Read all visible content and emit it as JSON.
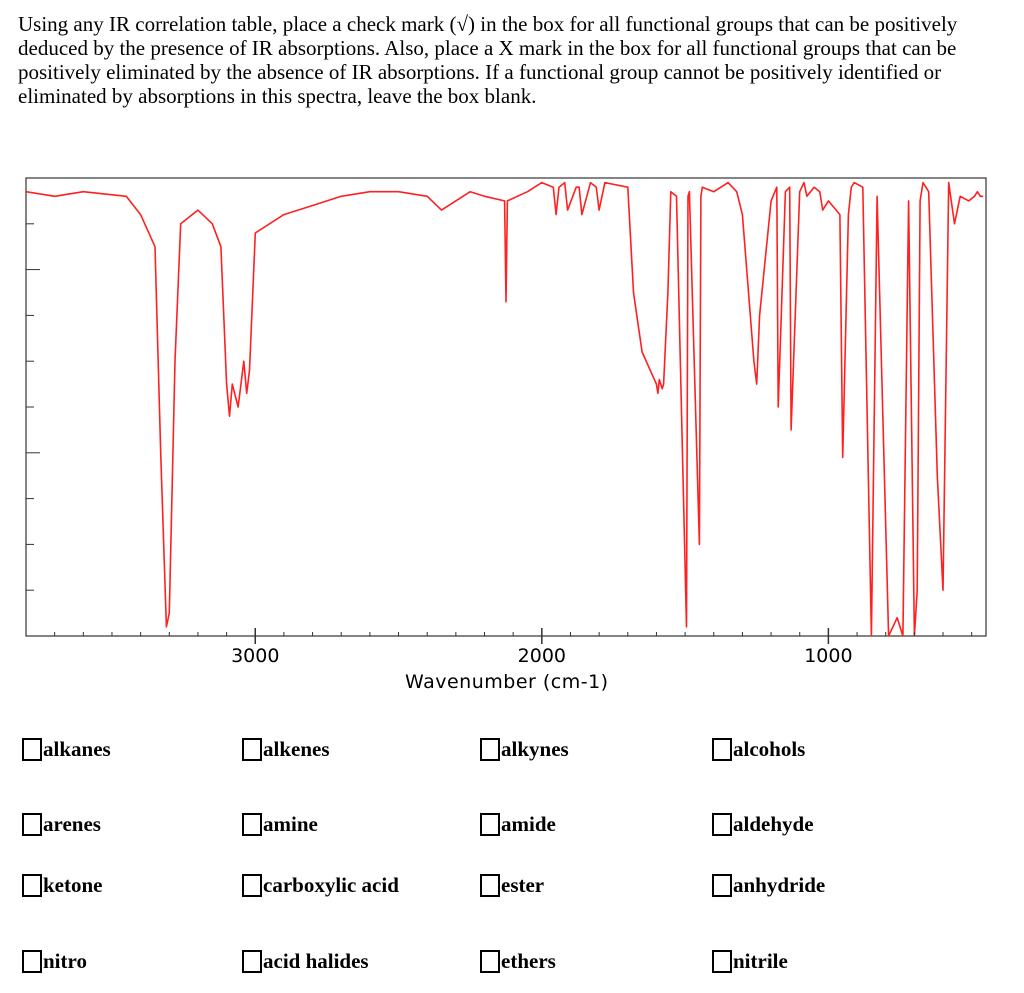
{
  "instructions": "Using any IR correlation table, place a check mark (√) in the box for all functional groups that can be positively deduced by the presence of IR absorptions.  Also, place a X mark in the box for all functional groups that can be positively eliminated by the absence of IR absorptions.  If a functional group cannot be positively identified or eliminated by absorptions in this spectra, leave the box blank.",
  "chart_data": {
    "type": "line",
    "xlabel": "Wavenumber (cm-1)",
    "x_ticks": [
      "3000",
      "2000",
      "1000"
    ],
    "x_tick_values": [
      3000,
      2000,
      1000
    ],
    "xlim": [
      3800,
      450
    ],
    "ylim": [
      0,
      1
    ],
    "y_ticks_labeled": false,
    "line_color": "#ff2020",
    "series": [
      {
        "name": "",
        "x": [
          3800,
          3700,
          3600,
          3450,
          3400,
          3350,
          3330,
          3310,
          3300,
          3280,
          3260,
          3200,
          3150,
          3120,
          3100,
          3090,
          3080,
          3060,
          3040,
          3030,
          3020,
          3000,
          2900,
          2800,
          2700,
          2600,
          2500,
          2400,
          2350,
          2250,
          2200,
          2130,
          2125,
          2120,
          2050,
          2000,
          1960,
          1950,
          1940,
          1920,
          1910,
          1880,
          1870,
          1860,
          1830,
          1810,
          1800,
          1780,
          1700,
          1680,
          1650,
          1600,
          1595,
          1590,
          1580,
          1575,
          1560,
          1550,
          1530,
          1495,
          1490,
          1485,
          1450,
          1445,
          1440,
          1400,
          1350,
          1320,
          1300,
          1260,
          1250,
          1240,
          1200,
          1180,
          1175,
          1150,
          1135,
          1130,
          1100,
          1085,
          1075,
          1050,
          1030,
          1020,
          1000,
          960,
          950,
          930,
          920,
          910,
          880,
          850,
          830,
          790,
          760,
          740,
          720,
          700,
          690,
          680,
          670,
          650,
          620,
          600,
          580,
          560,
          540,
          510,
          490,
          480,
          470,
          460
        ],
        "y": [
          0.97,
          0.96,
          0.97,
          0.96,
          0.92,
          0.85,
          0.4,
          0.02,
          0.05,
          0.6,
          0.9,
          0.93,
          0.9,
          0.85,
          0.55,
          0.48,
          0.55,
          0.5,
          0.6,
          0.53,
          0.58,
          0.88,
          0.92,
          0.94,
          0.96,
          0.97,
          0.97,
          0.96,
          0.93,
          0.97,
          0.96,
          0.95,
          0.73,
          0.95,
          0.97,
          0.99,
          0.98,
          0.92,
          0.98,
          0.99,
          0.93,
          0.98,
          0.98,
          0.92,
          0.99,
          0.98,
          0.93,
          0.99,
          0.98,
          0.75,
          0.62,
          0.55,
          0.53,
          0.56,
          0.54,
          0.55,
          0.75,
          0.97,
          0.96,
          0.02,
          0.96,
          0.97,
          0.2,
          0.96,
          0.98,
          0.97,
          0.99,
          0.97,
          0.92,
          0.6,
          0.55,
          0.7,
          0.95,
          0.98,
          0.5,
          0.97,
          0.98,
          0.45,
          0.97,
          0.99,
          0.96,
          0.98,
          0.97,
          0.93,
          0.95,
          0.92,
          0.39,
          0.92,
          0.98,
          0.99,
          0.98,
          0.0,
          0.96,
          0.0,
          0.04,
          0.0,
          0.95,
          0.0,
          0.1,
          0.95,
          0.99,
          0.97,
          0.35,
          0.1,
          0.99,
          0.9,
          0.96,
          0.95,
          0.96,
          0.97,
          0.96,
          0.96
        ]
      }
    ]
  },
  "options": [
    {
      "label": "alkanes"
    },
    {
      "label": "alkenes"
    },
    {
      "label": "alkynes"
    },
    {
      "label": "alcohols"
    },
    {
      "label": "arenes"
    },
    {
      "label": "amine"
    },
    {
      "label": "amide"
    },
    {
      "label": "aldehyde"
    },
    {
      "label": "ketone"
    },
    {
      "label": "carboxylic acid"
    },
    {
      "label": "ester"
    },
    {
      "label": "anhydride"
    },
    {
      "label": "nitro"
    },
    {
      "label": "acid halides"
    },
    {
      "label": "ethers"
    },
    {
      "label": "nitrile"
    }
  ]
}
